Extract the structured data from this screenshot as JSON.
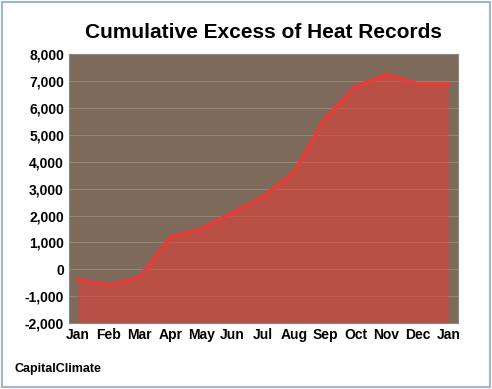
{
  "chart_data": {
    "type": "area",
    "title": "Cumulative Excess of Heat Records",
    "categories": [
      "Jan",
      "Feb",
      "Mar",
      "Apr",
      "May",
      "Jun",
      "Jul",
      "Aug",
      "Sep",
      "Oct",
      "Nov",
      "Dec",
      "Jan"
    ],
    "values": [
      -400,
      -600,
      -300,
      1200,
      1500,
      2100,
      2700,
      3600,
      5600,
      6800,
      7250,
      6900,
      6900
    ],
    "color": "#e0403a",
    "ylim": [
      -2000,
      8000
    ],
    "yticks": [
      {
        "value": -2000,
        "label": "-2,000"
      },
      {
        "value": -1000,
        "label": "-1,000"
      },
      0,
      {
        "value": 1000,
        "label": "1,000"
      },
      {
        "value": 2000,
        "label": "2,000"
      },
      {
        "value": 3000,
        "label": "3,000"
      },
      {
        "value": 4000,
        "label": "4,000"
      },
      {
        "value": 5000,
        "label": "5,000"
      },
      {
        "value": 6000,
        "label": "6,000"
      },
      {
        "value": 7000,
        "label": "7,000"
      },
      {
        "value": 8000,
        "label": "8,000"
      }
    ],
    "grid": true,
    "source": "CapitalClimate"
  }
}
